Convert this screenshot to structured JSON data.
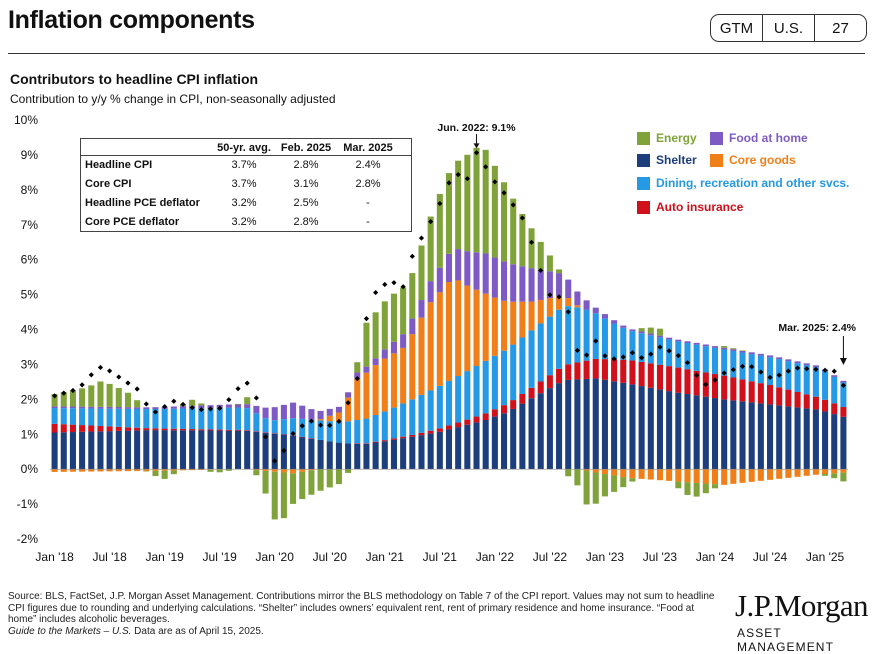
{
  "header": {
    "title": "Inflation components",
    "tags": [
      "GTM",
      "U.S.",
      "27"
    ]
  },
  "chart_title": "Contributors to headline CPI inflation",
  "chart_subtitle": "Contribution to y/y % change in CPI, non-seasonally adjusted",
  "table": {
    "columns": [
      "",
      "50-yr. avg.",
      "Feb. 2025",
      "Mar. 2025"
    ],
    "rows": [
      {
        "label": "Headline CPI",
        "v1": "3.7%",
        "v2": "2.8%",
        "v3": "2.4%"
      },
      {
        "label": "Core CPI",
        "v1": "3.7%",
        "v2": "3.1%",
        "v3": "2.8%"
      },
      {
        "label": "Headline PCE deflator",
        "v1": "3.2%",
        "v2": "2.5%",
        "v3": "-"
      },
      {
        "label": "Core PCE deflator",
        "v1": "3.2%",
        "v2": "2.8%",
        "v3": "-"
      }
    ]
  },
  "legend": {
    "energy": "Energy",
    "food": "Food  at home",
    "shelter": "Shelter",
    "core_goods": "Core goods",
    "dining": "Dining,  recreation and other svcs.",
    "auto": "Auto insurance"
  },
  "colors": {
    "energy": "#7FA33A",
    "food": "#7E5BC4",
    "shelter": "#1D3E7C",
    "core_goods": "#F07F19",
    "dining": "#2598E6",
    "auto": "#D0101A"
  },
  "annotations": {
    "peak": "Jun. 2022: 9.1%",
    "latest": "Mar. 2025: 2.4%"
  },
  "footer": {
    "line1": "Source: BLS, FactSet, J.P. Morgan Asset Management. Contributions mirror the BLS methodology on Table 7 of the CPI report. Values may not sum to headline CPI figures due to rounding and underlying calculations. “Shelter” includes owners’ equivalent rent, rent of primary residence and home insurance. “Food at home” includes alcoholic beverages.",
    "line2_italic": "Guide to the Markets – U.S.",
    "line2_rest": " Data are as of April 15, 2025."
  },
  "logo": {
    "name": "J.P.Morgan",
    "sub": "ASSET MANAGEMENT"
  },
  "chart_data": {
    "type": "bar",
    "stacked": true,
    "x_start": "2018-01",
    "x_end": "2025-03",
    "x_ticks": [
      "Jan '18",
      "Jul '18",
      "Jan '19",
      "Jul '19",
      "Jan '20",
      "Jul '20",
      "Jan '21",
      "Jul '21",
      "Jan '22",
      "Jul '22",
      "Jan '23",
      "Jul '23",
      "Jan '24",
      "Jul '24",
      "Jan '25"
    ],
    "y_ticks": [
      "10%",
      "9%",
      "8%",
      "7%",
      "6%",
      "5%",
      "4%",
      "3%",
      "2%",
      "1%",
      "0%",
      "-1%",
      "-2%"
    ],
    "ylim": [
      -2,
      10
    ],
    "y_unit": "%",
    "grid": false,
    "legend_position": "top-right",
    "series": [
      {
        "name": "Shelter",
        "key": "shelter",
        "anchors": [
          [
            0,
            1.05
          ],
          [
            12,
            1.12
          ],
          [
            24,
            1.1
          ],
          [
            30,
            0.95
          ],
          [
            36,
            0.75
          ],
          [
            39,
            0.72
          ],
          [
            42,
            0.82
          ],
          [
            48,
            1.05
          ],
          [
            54,
            1.4
          ],
          [
            57,
            1.65
          ],
          [
            60,
            2.05
          ],
          [
            62,
            2.3
          ],
          [
            64,
            2.55
          ],
          [
            68,
            2.6
          ],
          [
            72,
            2.45
          ],
          [
            78,
            2.2
          ],
          [
            84,
            2.0
          ],
          [
            90,
            1.85
          ],
          [
            96,
            1.7
          ],
          [
            99,
            1.5
          ]
        ]
      },
      {
        "name": "Auto insurance",
        "key": "auto",
        "anchors": [
          [
            0,
            0.25
          ],
          [
            12,
            0.05
          ],
          [
            24,
            0.02
          ],
          [
            36,
            0.0
          ],
          [
            45,
            0.05
          ],
          [
            52,
            0.15
          ],
          [
            60,
            0.3
          ],
          [
            66,
            0.5
          ],
          [
            72,
            0.68
          ],
          [
            78,
            0.72
          ],
          [
            84,
            0.68
          ],
          [
            90,
            0.55
          ],
          [
            96,
            0.35
          ],
          [
            99,
            0.28
          ]
        ]
      },
      {
        "name": "Dining, recreation and other svcs.",
        "key": "dining",
        "anchors": [
          [
            0,
            0.45
          ],
          [
            6,
            0.5
          ],
          [
            12,
            0.55
          ],
          [
            24,
            0.65
          ],
          [
            27,
            0.35
          ],
          [
            30,
            0.5
          ],
          [
            36,
            0.6
          ],
          [
            39,
            0.7
          ],
          [
            42,
            0.85
          ],
          [
            48,
            1.2
          ],
          [
            54,
            1.5
          ],
          [
            60,
            1.65
          ],
          [
            64,
            1.7
          ],
          [
            66,
            1.55
          ],
          [
            70,
            1.05
          ],
          [
            72,
            0.85
          ],
          [
            78,
            0.75
          ],
          [
            84,
            0.75
          ],
          [
            90,
            0.8
          ],
          [
            96,
            0.85
          ],
          [
            99,
            0.7
          ]
        ]
      },
      {
        "name": "Core goods",
        "key": "core_goods",
        "anchors": [
          [
            0,
            -0.08
          ],
          [
            12,
            -0.05
          ],
          [
            24,
            0.0
          ],
          [
            30,
            -0.12
          ],
          [
            33,
            0.0
          ],
          [
            36,
            0.3
          ],
          [
            38,
            1.2
          ],
          [
            41,
            1.5
          ],
          [
            44,
            1.6
          ],
          [
            47,
            2.5
          ],
          [
            50,
            2.9
          ],
          [
            52,
            2.4
          ],
          [
            56,
            1.5
          ],
          [
            60,
            0.8
          ],
          [
            64,
            0.3
          ],
          [
            66,
            0.0
          ],
          [
            68,
            -0.1
          ],
          [
            72,
            -0.25
          ],
          [
            78,
            -0.35
          ],
          [
            84,
            -0.45
          ],
          [
            90,
            -0.3
          ],
          [
            96,
            -0.15
          ],
          [
            99,
            -0.1
          ]
        ]
      },
      {
        "name": "Food at home",
        "key": "food",
        "anchors": [
          [
            0,
            0.05
          ],
          [
            12,
            0.05
          ],
          [
            24,
            0.1
          ],
          [
            27,
            0.35
          ],
          [
            30,
            0.45
          ],
          [
            33,
            0.25
          ],
          [
            36,
            0.15
          ],
          [
            40,
            0.18
          ],
          [
            42,
            0.3
          ],
          [
            46,
            0.5
          ],
          [
            50,
            0.85
          ],
          [
            54,
            1.15
          ],
          [
            56,
            1.15
          ],
          [
            60,
            0.95
          ],
          [
            63,
            0.7
          ],
          [
            66,
            0.35
          ],
          [
            68,
            0.15
          ],
          [
            72,
            0.05
          ],
          [
            84,
            0.05
          ],
          [
            99,
            0.05
          ]
        ]
      },
      {
        "name": "Energy",
        "key": "energy",
        "anchors": [
          [
            0,
            0.35
          ],
          [
            4,
            0.55
          ],
          [
            6,
            0.75
          ],
          [
            9,
            0.45
          ],
          [
            12,
            -0.1
          ],
          [
            14,
            -0.25
          ],
          [
            17,
            0.2
          ],
          [
            20,
            -0.1
          ],
          [
            23,
            0.0
          ],
          [
            24,
            0.25
          ],
          [
            26,
            -0.35
          ],
          [
            28,
            -1.6
          ],
          [
            30,
            -0.85
          ],
          [
            33,
            -0.65
          ],
          [
            36,
            -0.4
          ],
          [
            38,
            0.3
          ],
          [
            39,
            1.25
          ],
          [
            42,
            1.4
          ],
          [
            45,
            1.3
          ],
          [
            48,
            2.05
          ],
          [
            50,
            2.4
          ],
          [
            53,
            3.0
          ],
          [
            54,
            3.0
          ],
          [
            56,
            2.4
          ],
          [
            59,
            1.4
          ],
          [
            62,
            0.5
          ],
          [
            64,
            -0.1
          ],
          [
            66,
            -0.55
          ],
          [
            67,
            -1.1
          ],
          [
            69,
            -0.65
          ],
          [
            71,
            -0.35
          ],
          [
            74,
            0.15
          ],
          [
            76,
            0.2
          ],
          [
            78,
            -0.15
          ],
          [
            80,
            -0.45
          ],
          [
            82,
            -0.25
          ],
          [
            84,
            0.05
          ],
          [
            87,
            0.0
          ],
          [
            96,
            0.0
          ],
          [
            98,
            -0.15
          ],
          [
            99,
            -0.25
          ]
        ]
      }
    ],
    "headline_anchors": [
      [
        0,
        2.1
      ],
      [
        3,
        2.3
      ],
      [
        5,
        2.8
      ],
      [
        6,
        2.95
      ],
      [
        9,
        2.5
      ],
      [
        11,
        2.2
      ],
      [
        12,
        1.55
      ],
      [
        15,
        1.95
      ],
      [
        18,
        1.7
      ],
      [
        21,
        1.75
      ],
      [
        23,
        2.3
      ],
      [
        24,
        2.5
      ],
      [
        25,
        2.3
      ],
      [
        26,
        1.5
      ],
      [
        27,
        0.3
      ],
      [
        28,
        0.2
      ],
      [
        30,
        1.05
      ],
      [
        32,
        1.4
      ],
      [
        34,
        1.2
      ],
      [
        36,
        1.4
      ],
      [
        38,
        2.6
      ],
      [
        39,
        4.2
      ],
      [
        40,
        5.0
      ],
      [
        42,
        5.4
      ],
      [
        44,
        5.2
      ],
      [
        45,
        6.2
      ],
      [
        47,
        7.0
      ],
      [
        49,
        7.9
      ],
      [
        50,
        8.5
      ],
      [
        52,
        8.3
      ],
      [
        53,
        9.1
      ],
      [
        55,
        8.3
      ],
      [
        57,
        7.75
      ],
      [
        59,
        7.1
      ],
      [
        60,
        6.4
      ],
      [
        62,
        5.0
      ],
      [
        64,
        4.9
      ],
      [
        65,
        4.05
      ],
      [
        66,
        3.0
      ],
      [
        68,
        3.7
      ],
      [
        69,
        3.25
      ],
      [
        71,
        3.1
      ],
      [
        72,
        3.4
      ],
      [
        74,
        3.15
      ],
      [
        76,
        3.5
      ],
      [
        78,
        3.3
      ],
      [
        80,
        2.95
      ],
      [
        81,
        2.5
      ],
      [
        82,
        2.4
      ],
      [
        84,
        2.75
      ],
      [
        87,
        3.0
      ],
      [
        90,
        2.6
      ],
      [
        93,
        2.9
      ],
      [
        96,
        2.85
      ],
      [
        98,
        2.8
      ],
      [
        99,
        2.4
      ]
    ]
  }
}
